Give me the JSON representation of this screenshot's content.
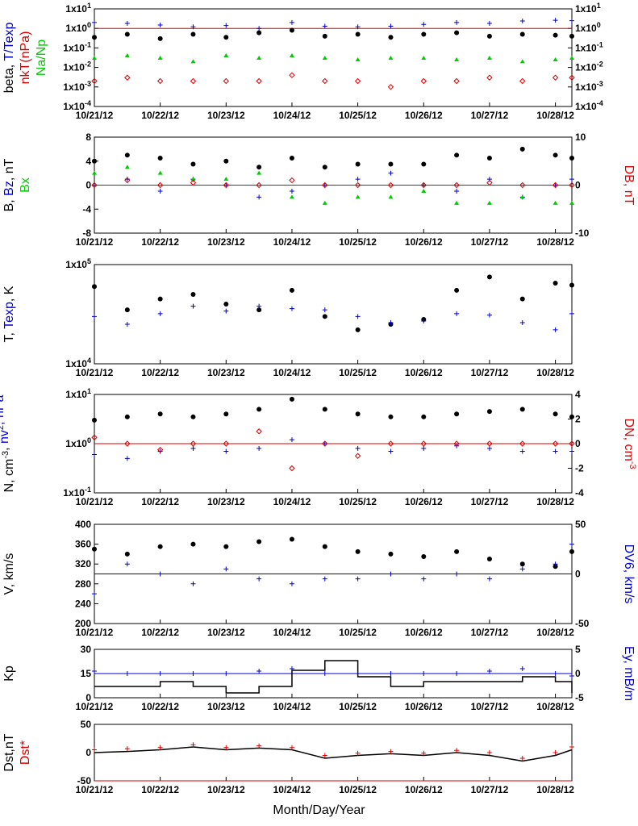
{
  "colors": {
    "black": "#000000",
    "blue": "#0000cc",
    "red": "#dd0000",
    "green": "#00cc00"
  },
  "xlabel": "Month/Day/Year",
  "x_ticks": [
    "10/21/12",
    "10/22/12",
    "10/23/12",
    "10/24/12",
    "10/25/12",
    "10/26/12",
    "10/27/12",
    "10/28/12"
  ],
  "chart_data": [
    {
      "type": "scatter",
      "yscale": "log",
      "ylim": [
        0.0001,
        10
      ],
      "left_ticks": [
        "1x10-4",
        "1x10-3",
        "1x10-2",
        "1x10-1",
        "1x100",
        "1x101"
      ],
      "right_ticks": [
        "1x10-4",
        "1x10-3",
        "1x10-2",
        "1x10-1",
        "1x100",
        "1x101"
      ],
      "ylabel_parts": [
        {
          "text": "beta, ",
          "color": "black"
        },
        {
          "text": "T/Texp",
          "color": "blue"
        }
      ],
      "ylabel2_parts": [
        {
          "text": "nkT(nPa)",
          "color": "red"
        }
      ],
      "ylabel3_parts": [
        {
          "text": "Na/Np",
          "color": "green"
        }
      ],
      "reference_line": {
        "value": 1,
        "color": "red"
      },
      "series": [
        {
          "label": "beta",
          "color": "black",
          "marker": "dot",
          "x": [
            0,
            0.5,
            1,
            1.5,
            2,
            2.5,
            3,
            3.5,
            4,
            4.5,
            5,
            5.5,
            6,
            6.5,
            7,
            7.25
          ],
          "y": [
            0.35,
            0.5,
            0.3,
            0.5,
            0.35,
            0.6,
            0.8,
            0.4,
            0.5,
            0.35,
            0.5,
            0.6,
            0.4,
            0.5,
            0.45,
            0.4
          ]
        },
        {
          "label": "T/Texp",
          "color": "blue",
          "marker": "plus",
          "x": [
            0,
            0.5,
            1,
            1.5,
            2,
            2.5,
            3,
            3.5,
            4,
            4.5,
            5,
            5.5,
            6,
            6.5,
            7,
            7.25
          ],
          "y": [
            2,
            1.8,
            1.5,
            1.2,
            1.4,
            1.0,
            2.0,
            1.3,
            1.2,
            1.3,
            1.6,
            2.0,
            1.8,
            2.4,
            2.6,
            2.5
          ]
        },
        {
          "label": "nkT(nPa)",
          "color": "red",
          "marker": "diamond",
          "x": [
            0,
            0.5,
            1,
            1.5,
            2,
            2.5,
            3,
            3.5,
            4,
            4.5,
            5,
            5.5,
            6,
            6.5,
            7,
            7.25
          ],
          "y": [
            0.002,
            0.003,
            0.002,
            0.002,
            0.002,
            0.002,
            0.004,
            0.002,
            0.002,
            0.001,
            0.002,
            0.002,
            0.003,
            0.002,
            0.003,
            0.003
          ]
        },
        {
          "label": "Na/Np",
          "color": "green",
          "marker": "triangle",
          "x": [
            0,
            0.5,
            1,
            1.5,
            2,
            2.5,
            3,
            3.5,
            4,
            4.5,
            5,
            5.5,
            6,
            6.5,
            7,
            7.25
          ],
          "y": [
            0.03,
            0.04,
            0.03,
            0.02,
            0.04,
            0.03,
            0.04,
            0.03,
            0.025,
            0.03,
            0.03,
            0.025,
            0.03,
            0.02,
            0.025,
            0.03
          ]
        }
      ]
    },
    {
      "type": "scatter",
      "ylim": [
        -8,
        8
      ],
      "y2lim": [
        -10,
        10
      ],
      "left_ticks": [
        "-8",
        "-4",
        "0",
        "4",
        "8"
      ],
      "right_ticks": [
        "-10",
        "0",
        "10"
      ],
      "ylabel_parts": [
        {
          "text": "B, ",
          "color": "black"
        },
        {
          "text": "Bz",
          "color": "blue"
        },
        {
          "text": ", nT",
          "color": "black"
        }
      ],
      "ylabel2_parts": [
        {
          "text": "Bx",
          "color": "green"
        }
      ],
      "right_label_parts": [
        {
          "text": "DB, nT",
          "color": "red"
        }
      ],
      "reference_line": {
        "value": 0,
        "color": "red"
      },
      "series": [
        {
          "label": "B",
          "color": "black",
          "marker": "dot",
          "x": [
            0,
            0.5,
            1,
            1.5,
            2,
            2.5,
            3,
            3.5,
            4,
            4.5,
            5,
            5.5,
            6,
            6.5,
            7,
            7.25
          ],
          "y": [
            4,
            5,
            4.5,
            3.5,
            4,
            3,
            4.5,
            3,
            3.5,
            3.5,
            3.5,
            5,
            4.5,
            6,
            5,
            4.5
          ]
        },
        {
          "label": "Bz",
          "color": "blue",
          "marker": "plus",
          "x": [
            0,
            0.5,
            1,
            1.5,
            2,
            2.5,
            3,
            3.5,
            4,
            4.5,
            5,
            5.5,
            6,
            6.5,
            7,
            7.25
          ],
          "y": [
            0,
            1,
            -1,
            1,
            0,
            -2,
            -1,
            0,
            1,
            2,
            0,
            -1,
            1,
            -2,
            0,
            1
          ]
        },
        {
          "label": "Bx",
          "color": "green",
          "marker": "triangle",
          "x": [
            0,
            0.5,
            1,
            1.5,
            2,
            2.5,
            3,
            3.5,
            4,
            4.5,
            5,
            5.5,
            6,
            6.5,
            7,
            7.25
          ],
          "y": [
            2,
            3,
            2,
            1,
            1,
            2,
            -2,
            -3,
            -2,
            -2,
            -1,
            -3,
            -3,
            -2,
            -3,
            -3
          ]
        },
        {
          "label": "DB",
          "color": "red",
          "marker": "diamond",
          "axis": "right",
          "x": [
            0,
            0.5,
            1,
            1.5,
            2,
            2.5,
            3,
            3.5,
            4,
            4.5,
            5,
            5.5,
            6,
            6.5,
            7,
            7.25
          ],
          "y": [
            0,
            1,
            0,
            0.5,
            0,
            0,
            1,
            0,
            0,
            0,
            0,
            0,
            0.5,
            0,
            0,
            0
          ]
        }
      ]
    },
    {
      "type": "scatter",
      "yscale": "log",
      "ylim": [
        10000,
        100000
      ],
      "left_ticks": [
        "1x104",
        "1x105"
      ],
      "right_ticks": [],
      "ylabel_parts": [
        {
          "text": "T, ",
          "color": "black"
        },
        {
          "text": "Texp",
          "color": "blue"
        },
        {
          "text": ", K",
          "color": "black"
        }
      ],
      "series": [
        {
          "label": "T",
          "color": "black",
          "marker": "dot",
          "x": [
            0,
            0.5,
            1,
            1.5,
            2,
            2.5,
            3,
            3.5,
            4,
            4.5,
            5,
            5.5,
            6,
            6.5,
            7,
            7.25
          ],
          "y": [
            60000,
            35000,
            45000,
            50000,
            40000,
            35000,
            55000,
            30000,
            22000,
            25000,
            28000,
            55000,
            75000,
            45000,
            65000,
            62000
          ]
        },
        {
          "label": "Texp",
          "color": "blue",
          "marker": "plus",
          "x": [
            0,
            0.5,
            1,
            1.5,
            2,
            2.5,
            3,
            3.5,
            4,
            4.5,
            5,
            5.5,
            6,
            6.5,
            7,
            7.25
          ],
          "y": [
            30000,
            25000,
            32000,
            38000,
            34000,
            38000,
            36000,
            35000,
            30000,
            26000,
            27000,
            32000,
            31000,
            26000,
            22000,
            32000
          ]
        }
      ]
    },
    {
      "type": "scatter",
      "yscale": "log",
      "ylim": [
        0.1,
        10
      ],
      "y2lim": [
        -4,
        4
      ],
      "left_ticks": [
        "1x10-1",
        "1x100",
        "1x101"
      ],
      "right_ticks": [
        "-4",
        "-2",
        "0",
        "2",
        "4"
      ],
      "ylabel_parts": [
        {
          "text": "N, cm",
          "color": "black"
        },
        {
          "text": "-3",
          "color": "black",
          "sup": true
        },
        {
          "text": ", ",
          "color": "black"
        },
        {
          "text": "nv",
          "color": "blue"
        },
        {
          "text": "2",
          "color": "blue",
          "sup": true
        },
        {
          "text": ", nPa",
          "color": "blue"
        }
      ],
      "right_label_parts": [
        {
          "text": "DN, cm",
          "color": "red"
        },
        {
          "text": "-3",
          "color": "red",
          "sup": true
        }
      ],
      "reference_line": {
        "value": 1,
        "color": "red"
      },
      "series": [
        {
          "label": "N",
          "color": "black",
          "marker": "dot",
          "x": [
            0,
            0.5,
            1,
            1.5,
            2,
            2.5,
            3,
            3.5,
            4,
            4.5,
            5,
            5.5,
            6,
            6.5,
            7,
            7.25
          ],
          "y": [
            3,
            3.5,
            4,
            3.5,
            4,
            5,
            8,
            5,
            4,
            3.5,
            3.5,
            4,
            4.5,
            5,
            4,
            3.5
          ]
        },
        {
          "label": "nv2",
          "color": "blue",
          "marker": "plus",
          "x": [
            0,
            0.5,
            1,
            1.5,
            2,
            2.5,
            3,
            3.5,
            4,
            4.5,
            5,
            5.5,
            6,
            6.5,
            7,
            7.25
          ],
          "y": [
            0.6,
            0.5,
            0.7,
            0.8,
            0.7,
            0.8,
            1.2,
            1.0,
            0.8,
            0.7,
            0.8,
            0.9,
            0.8,
            0.7,
            0.7,
            0.7
          ]
        },
        {
          "label": "DN",
          "color": "red",
          "marker": "diamond",
          "axis": "right",
          "x": [
            0,
            0.5,
            1,
            1.5,
            2,
            2.5,
            3,
            3.5,
            4,
            4.5,
            5,
            5.5,
            6,
            6.5,
            7,
            7.25
          ],
          "y": [
            0.5,
            0,
            -0.5,
            0,
            0,
            1,
            -2,
            0,
            -1,
            0,
            0,
            0,
            0,
            0,
            0,
            0
          ]
        }
      ]
    },
    {
      "type": "scatter",
      "ylim": [
        200,
        400
      ],
      "y2lim": [
        -50,
        50
      ],
      "left_ticks": [
        "200",
        "240",
        "280",
        "320",
        "360",
        "400"
      ],
      "right_ticks": [
        "-50",
        "0",
        "50"
      ],
      "ylabel_parts": [
        {
          "text": "V, km/s",
          "color": "black"
        }
      ],
      "right_label_parts": [
        {
          "text": "DV6, km/s",
          "color": "blue"
        }
      ],
      "reference_line": {
        "value": 0,
        "axis": "right",
        "color": "blue"
      },
      "series": [
        {
          "label": "V",
          "color": "black",
          "marker": "dot",
          "x": [
            0,
            0.5,
            1,
            1.5,
            2,
            2.5,
            3,
            3.5,
            4,
            4.5,
            5,
            5.5,
            6,
            6.5,
            7,
            7.25
          ],
          "y": [
            350,
            340,
            355,
            360,
            355,
            365,
            370,
            355,
            345,
            340,
            335,
            345,
            330,
            320,
            315,
            345
          ]
        },
        {
          "label": "DV6",
          "color": "blue",
          "marker": "plus",
          "axis": "right",
          "x": [
            0,
            0.5,
            1,
            1.5,
            2,
            2.5,
            3,
            3.5,
            4,
            4.5,
            5,
            5.5,
            6,
            6.5,
            7,
            7.25
          ],
          "y": [
            -20,
            10,
            0,
            -10,
            5,
            -5,
            -10,
            -5,
            -5,
            0,
            -5,
            0,
            -5,
            5,
            10,
            30
          ]
        }
      ]
    },
    {
      "type": "line",
      "ylim": [
        0,
        30
      ],
      "y2lim": [
        -5,
        5
      ],
      "left_ticks": [
        "0",
        "15",
        "30"
      ],
      "right_ticks": [
        "-5",
        "0",
        "5"
      ],
      "ylabel_parts": [
        {
          "text": "Kp",
          "color": "black"
        }
      ],
      "right_label_parts": [
        {
          "text": "Ey,  mB/m",
          "color": "blue"
        }
      ],
      "reference_line": {
        "value": 0,
        "axis": "right",
        "color": "blue"
      },
      "series": [
        {
          "label": "Kp",
          "color": "black",
          "marker": "step",
          "x": [
            0,
            0.5,
            1,
            1.5,
            2,
            2.5,
            3,
            3.5,
            4,
            4.5,
            5,
            5.5,
            6,
            6.5,
            7,
            7.25
          ],
          "y": [
            7,
            7,
            10,
            7,
            3,
            7,
            17,
            23,
            13,
            7,
            10,
            10,
            10,
            13,
            10,
            3
          ]
        },
        {
          "label": "Ey",
          "color": "blue",
          "marker": "plus",
          "axis": "right",
          "x": [
            0,
            0.5,
            1,
            1.5,
            2,
            2.5,
            3,
            3.5,
            4,
            4.5,
            5,
            5.5,
            6,
            6.5,
            7,
            7.25
          ],
          "y": [
            0.5,
            0,
            0,
            0,
            0,
            0.5,
            1,
            0,
            0,
            0,
            0,
            0,
            0.5,
            1,
            0,
            -0.5
          ]
        }
      ]
    },
    {
      "type": "line",
      "ylim": [
        -50,
        50
      ],
      "left_ticks": [
        "-50",
        "0",
        "50"
      ],
      "right_ticks": [],
      "ylabel_parts": [
        {
          "text": "Dst,nT",
          "color": "black"
        }
      ],
      "ylabel2_parts": [
        {
          "text": "Dst*",
          "color": "red"
        }
      ],
      "reference_line": {
        "value": -50,
        "color": "red"
      },
      "series": [
        {
          "label": "Dst",
          "color": "black",
          "marker": "line",
          "x": [
            0,
            0.5,
            1,
            1.5,
            2,
            2.5,
            3,
            3.5,
            4,
            4.5,
            5,
            5.5,
            6,
            6.5,
            7,
            7.25
          ],
          "y": [
            0,
            2,
            5,
            10,
            5,
            8,
            5,
            -10,
            -5,
            -2,
            -5,
            0,
            -5,
            -15,
            -5,
            5
          ]
        },
        {
          "label": "Dst*",
          "color": "red",
          "marker": "plus",
          "x": [
            0,
            0.5,
            1,
            1.5,
            2,
            2.5,
            3,
            3.5,
            4,
            4.5,
            5,
            5.5,
            6,
            6.5,
            7,
            7.25
          ],
          "y": [
            5,
            7,
            9,
            14,
            9,
            12,
            9,
            -5,
            -1,
            2,
            -1,
            4,
            0,
            -10,
            0,
            10
          ]
        }
      ]
    }
  ]
}
